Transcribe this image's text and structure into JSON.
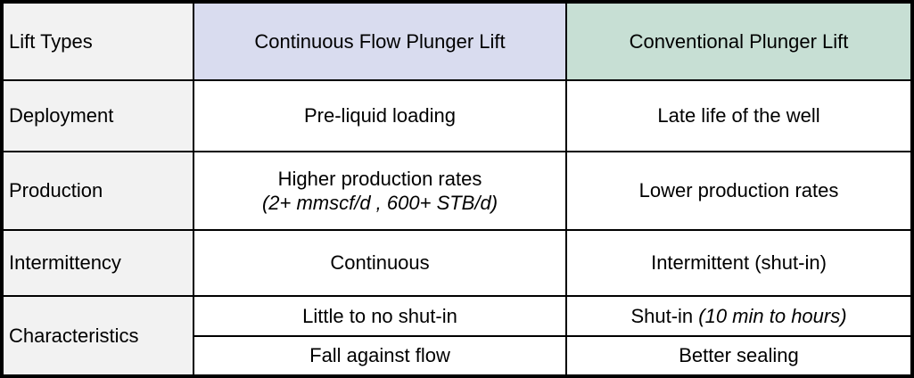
{
  "table": {
    "corner_label": "Lift Types",
    "columns": [
      {
        "label": "Continuous Flow Plunger Lift",
        "header_bg": "#d9dcef"
      },
      {
        "label": "Conventional Plunger Lift",
        "header_bg": "#c7dfd4"
      }
    ],
    "rows": [
      {
        "label": "Deployment",
        "continuous": "Pre-liquid loading",
        "conventional": "Late life of the well"
      },
      {
        "label": "Production",
        "continuous_main": "Higher production rates",
        "continuous_note": "(2+ mmscf/d , 600+ STB/d)",
        "conventional": "Lower production rates"
      },
      {
        "label": "Intermittency",
        "continuous": "Continuous",
        "conventional": "Intermittent (shut-in)"
      },
      {
        "label": "Characteristics",
        "sub_rows": [
          {
            "continuous": "Little to no shut-in",
            "conventional_main": "Shut-in ",
            "conventional_note": "(10 min to hours)"
          },
          {
            "continuous": "Fall against flow",
            "conventional": "Better sealing"
          }
        ]
      }
    ],
    "colors": {
      "label_column_bg": "#f2f2f2",
      "continuous_header_bg": "#d9dcef",
      "conventional_header_bg": "#c7dfd4",
      "body_cell_bg": "#ffffff",
      "border": "#000000",
      "text": "#000000"
    }
  }
}
